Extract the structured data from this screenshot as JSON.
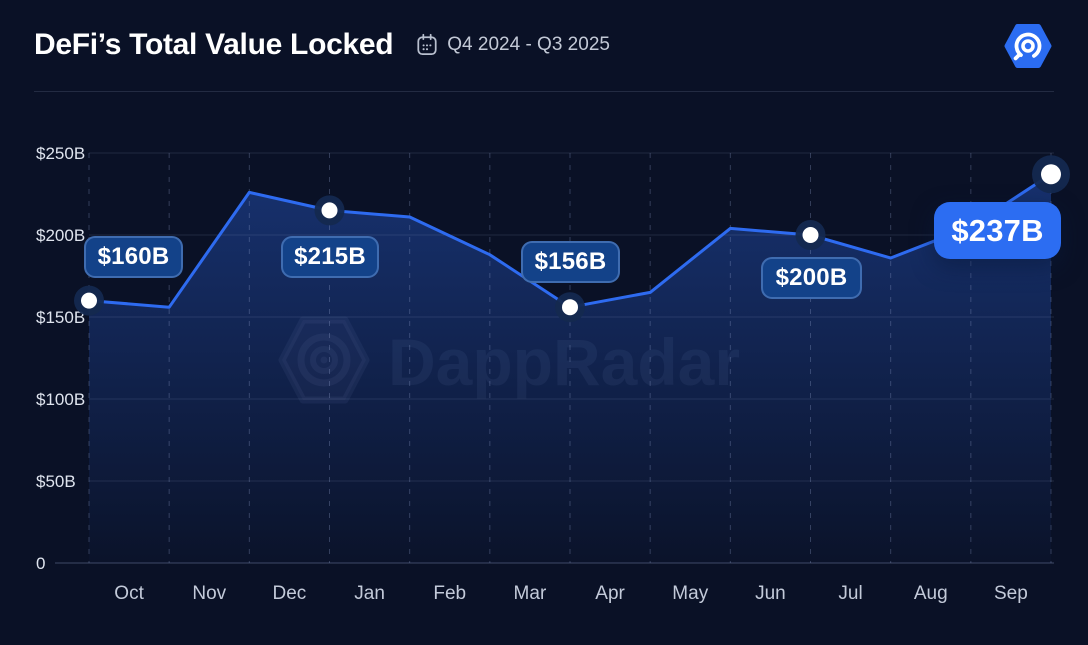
{
  "header": {
    "title": "DeFi’s Total Value Locked",
    "period": "Q4 2024 - Q3 2025",
    "calendar_icon": "calendar-icon",
    "logo_icon": "dappradar-hexagon-radar-logo"
  },
  "watermark": {
    "text": "DappRadar"
  },
  "colors": {
    "background": "#0A1126",
    "line": "#2E6BF0",
    "area_fill_top": "rgba(46,107,240,0.38)",
    "badge_fill": "#134289",
    "badge_border": "rgba(108,150,216,0.5)",
    "badge_highlight": "#2C6DF2",
    "grid": "#96A6CF",
    "y_axis_label": "#DFE4EE",
    "x_axis_label": "#C3CAD9",
    "title_text": "#FFFFFF",
    "subtitle_text": "#C3C9D6",
    "dot_fill": "#FFFFFF",
    "dot_halo": "#14294F"
  },
  "chart_data": {
    "type": "area",
    "title": "DeFi’s Total Value Locked",
    "period": "Q4 2024 - Q3 2025",
    "xlabel": "",
    "ylabel": "",
    "ylim": [
      0,
      250
    ],
    "y_ticks": [
      "0",
      "$50B",
      "$100B",
      "$150B",
      "$200B",
      "$250B"
    ],
    "y_tick_values": [
      0,
      50,
      100,
      150,
      200,
      250
    ],
    "categories": [
      "Oct",
      "Nov",
      "Dec",
      "Jan",
      "Feb",
      "Mar",
      "Apr",
      "May",
      "Jun",
      "Jul",
      "Aug",
      "Sep"
    ],
    "x_points": [
      "Oct 2024",
      "Nov 2024",
      "Dec 2024",
      "Jan 2025",
      "Feb 2025",
      "Mar 2025",
      "Apr 2025",
      "May 2025",
      "Jun 2025",
      "Jul 2025",
      "Aug 2025",
      "Sep 2025",
      "End Q3 2025"
    ],
    "series": [
      {
        "name": "Total Value Locked ($B)",
        "values": [
          160,
          156,
          226,
          215,
          211,
          188,
          156,
          165,
          204,
          200,
          186,
          205,
          237
        ]
      }
    ],
    "highlighted_points": [
      {
        "index": 0,
        "month": "Oct",
        "value": 160,
        "label": "$160B",
        "highlight": false
      },
      {
        "index": 3,
        "month": "Jan",
        "value": 215,
        "label": "$215B",
        "highlight": false
      },
      {
        "index": 6,
        "month": "Apr",
        "value": 156,
        "label": "$156B",
        "highlight": false
      },
      {
        "index": 9,
        "month": "Jul",
        "value": 200,
        "label": "$200B",
        "highlight": false
      },
      {
        "index": 12,
        "month": "Sep",
        "value": 237,
        "label": "$237B",
        "highlight": true
      }
    ],
    "grid": true,
    "legend": false
  }
}
